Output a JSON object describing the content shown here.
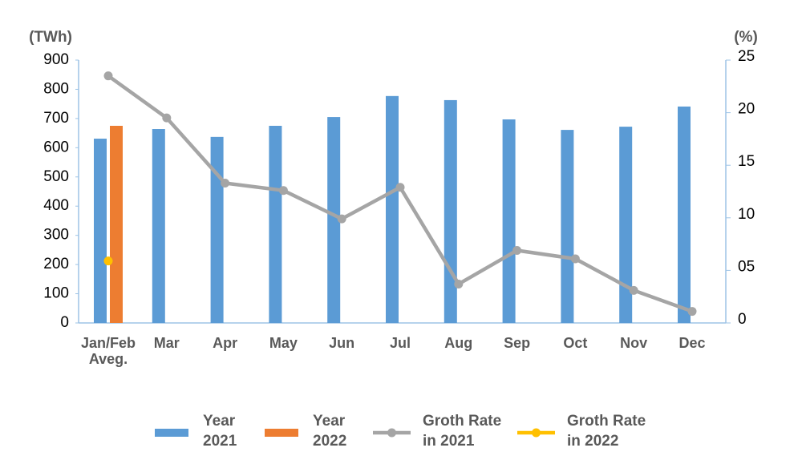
{
  "chart_data": {
    "type": "bar-line",
    "y_label": "(TWh)",
    "y2_label": "(%)",
    "categories": [
      "Jan/Feb Aveg.",
      "Mar",
      "Apr",
      "May",
      "Jun",
      "Jul",
      "Aug",
      "Sep",
      "Oct",
      "Nov",
      "Dec"
    ],
    "series": [
      {
        "name": "Year 2021",
        "type": "bar",
        "color": "#5b9bd5",
        "values": [
          631,
          664,
          637,
          675,
          705,
          777,
          763,
          697,
          661,
          672,
          741
        ]
      },
      {
        "name": "Year 2022",
        "type": "bar",
        "color": "#ed7d31",
        "values": [
          675,
          null,
          null,
          null,
          null,
          null,
          null,
          null,
          null,
          null,
          null
        ]
      },
      {
        "name": "Groth Rate in 2021",
        "type": "line",
        "axis": "y2",
        "color": "#a5a5a5",
        "values": [
          23.5,
          19.5,
          13.3,
          12.6,
          9.9,
          12.9,
          3.7,
          6.9,
          6.1,
          3.1,
          1.1
        ]
      },
      {
        "name": "Groth Rate in 2022",
        "type": "line",
        "axis": "y2",
        "color": "#ffc000",
        "values": [
          5.9,
          null,
          null,
          null,
          null,
          null,
          null,
          null,
          null,
          null,
          null
        ]
      }
    ],
    "ylim": [
      0,
      900
    ],
    "yticks": [
      0,
      100,
      200,
      300,
      400,
      500,
      600,
      700,
      800,
      900
    ],
    "y2lim": [
      0,
      25
    ],
    "y2ticks": [
      0,
      {
        "value": 5,
        "label": "05"
      },
      10,
      15,
      20,
      25
    ]
  }
}
